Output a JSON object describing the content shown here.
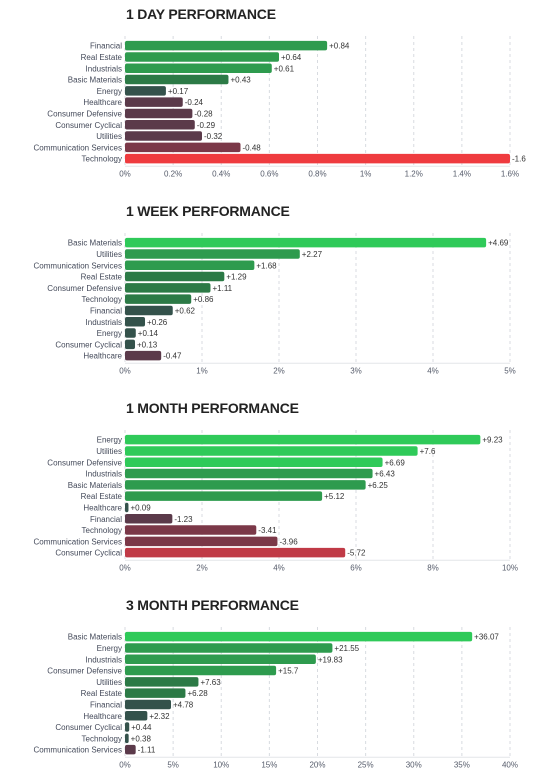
{
  "chart_data": [
    {
      "type": "bar",
      "orientation": "horizontal",
      "title": "1 DAY PERFORMANCE",
      "categories": [
        "Financial",
        "Real Estate",
        "Industrials",
        "Basic Materials",
        "Energy",
        "Healthcare",
        "Consumer Defensive",
        "Consumer Cyclical",
        "Utilities",
        "Communication Services",
        "Technology"
      ],
      "values": [
        0.84,
        0.64,
        0.61,
        0.43,
        0.17,
        -0.24,
        -0.28,
        -0.29,
        -0.32,
        -0.48,
        -1.6
      ],
      "value_labels": [
        "+0.84",
        "+0.64",
        "+0.61",
        "+0.43",
        "+0.17",
        "-0.24",
        "-0.28",
        "-0.29",
        "-0.32",
        "-0.48",
        "-1.6"
      ],
      "xlim": [
        0,
        1.6
      ],
      "xticks": [
        0,
        0.2,
        0.4,
        0.6,
        0.8,
        1,
        1.2,
        1.4,
        1.6
      ],
      "xtick_labels": [
        "0%",
        "0.2%",
        "0.4%",
        "0.6%",
        "0.8%",
        "1%",
        "1.2%",
        "1.4%",
        "1.6%"
      ],
      "grid": true
    },
    {
      "type": "bar",
      "orientation": "horizontal",
      "title": "1 WEEK PERFORMANCE",
      "categories": [
        "Basic Materials",
        "Utilities",
        "Communication Services",
        "Real Estate",
        "Consumer Defensive",
        "Technology",
        "Financial",
        "Industrials",
        "Energy",
        "Consumer Cyclical",
        "Healthcare"
      ],
      "values": [
        4.69,
        2.27,
        1.68,
        1.29,
        1.11,
        0.86,
        0.62,
        0.26,
        0.14,
        0.13,
        -0.47
      ],
      "value_labels": [
        "+4.69",
        "+2.27",
        "+1.68",
        "+1.29",
        "+1.11",
        "+0.86",
        "+0.62",
        "+0.26",
        "+0.14",
        "+0.13",
        "-0.47"
      ],
      "xlim": [
        0,
        5
      ],
      "xticks": [
        0,
        1,
        2,
        3,
        4,
        5
      ],
      "xtick_labels": [
        "0%",
        "1%",
        "2%",
        "3%",
        "4%",
        "5%"
      ],
      "grid": true
    },
    {
      "type": "bar",
      "orientation": "horizontal",
      "title": "1 MONTH PERFORMANCE",
      "categories": [
        "Energy",
        "Utilities",
        "Consumer Defensive",
        "Industrials",
        "Basic Materials",
        "Real Estate",
        "Healthcare",
        "Financial",
        "Technology",
        "Communication Services",
        "Consumer Cyclical"
      ],
      "values": [
        9.23,
        7.6,
        6.69,
        6.43,
        6.25,
        5.12,
        0.09,
        -1.23,
        -3.41,
        -3.96,
        -5.72
      ],
      "value_labels": [
        "+9.23",
        "+7.6",
        "+6.69",
        "+6.43",
        "+6.25",
        "+5.12",
        "+0.09",
        "-1.23",
        "-3.41",
        "-3.96",
        "-5.72"
      ],
      "xlim": [
        0,
        10
      ],
      "xticks": [
        0,
        2,
        4,
        6,
        8,
        10
      ],
      "xtick_labels": [
        "0%",
        "2%",
        "4%",
        "6%",
        "8%",
        "10%"
      ],
      "grid": true
    },
    {
      "type": "bar",
      "orientation": "horizontal",
      "title": "3 MONTH PERFORMANCE",
      "categories": [
        "Basic Materials",
        "Energy",
        "Industrials",
        "Consumer Defensive",
        "Utilities",
        "Real Estate",
        "Financial",
        "Healthcare",
        "Consumer Cyclical",
        "Technology",
        "Communication Services"
      ],
      "values": [
        36.07,
        21.55,
        19.83,
        15.7,
        7.63,
        6.28,
        4.78,
        2.32,
        0.44,
        0.38,
        -1.11
      ],
      "value_labels": [
        "+36.07",
        "+21.55",
        "+19.83",
        "+15.7",
        "+7.63",
        "+6.28",
        "+4.78",
        "+2.32",
        "+0.44",
        "+0.38",
        "-1.11"
      ],
      "xlim": [
        0,
        40
      ],
      "xticks": [
        0,
        5,
        10,
        15,
        20,
        25,
        30,
        35,
        40
      ],
      "xtick_labels": [
        "0%",
        "5%",
        "10%",
        "15%",
        "20%",
        "25%",
        "30%",
        "35%",
        "40%"
      ],
      "grid": true
    }
  ]
}
